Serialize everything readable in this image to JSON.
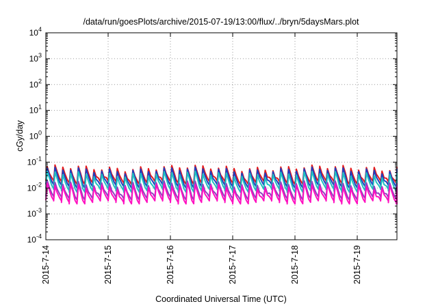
{
  "chart_data": {
    "type": "line",
    "title": "/data/run/goesPlots/archive/2015-07-19/13:00/flux/../bryn/5daysMars.plot",
    "xlabel": "Coordinated Universal Time (UTC)",
    "ylabel": "cGy/day",
    "yscale": "log",
    "ylim_exponents": [
      -4,
      4
    ],
    "y_tick_labels": [
      {
        "base": "10",
        "exp": "4"
      },
      {
        "base": "10",
        "exp": "3"
      },
      {
        "base": "10",
        "exp": "2"
      },
      {
        "base": "10",
        "exp": "1"
      },
      {
        "base": "10",
        "exp": "0"
      },
      {
        "base": "10",
        "exp": "-1"
      },
      {
        "base": "10",
        "exp": "-2"
      },
      {
        "base": "10",
        "exp": "-3"
      },
      {
        "base": "10",
        "exp": "-4"
      }
    ],
    "x_tick_labels": [
      "2015-7-14",
      "2015-7-15",
      "2015-7-16",
      "2015-7-17",
      "2015-7-18",
      "2015-7-19"
    ],
    "xlim": [
      "2015-7-14 00:00",
      "2015-7-19 13:00"
    ],
    "grid": true,
    "cycles_per_day": 8,
    "series": [
      {
        "color": "#e41a1c",
        "peak": 0.06,
        "trough": 0.018
      },
      {
        "color": "#1f3fbf",
        "peak": 0.05,
        "trough": 0.013
      },
      {
        "color": "#20c0c0",
        "peak": 0.035,
        "trough": 0.009
      },
      {
        "color": "#9040c0",
        "peak": 0.015,
        "trough": 0.0045
      },
      {
        "color": "#ff10c0",
        "peak": 0.012,
        "trough": 0.0032
      }
    ]
  }
}
